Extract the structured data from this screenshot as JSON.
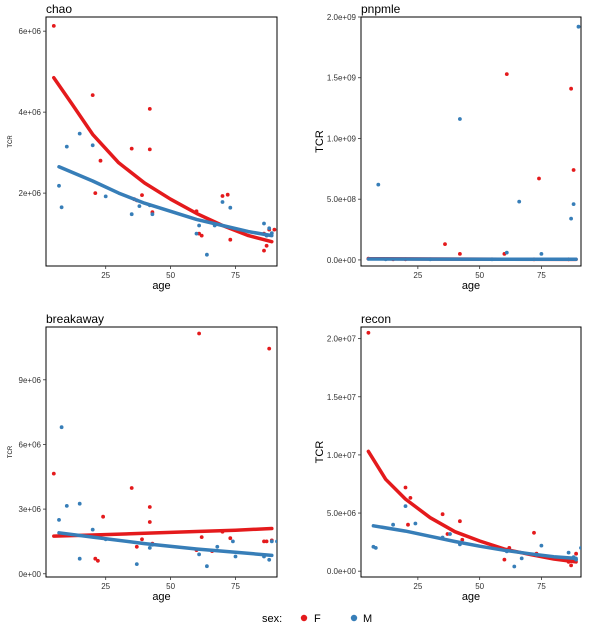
{
  "legend": {
    "title": "sex:",
    "entries": [
      {
        "label": "F",
        "color": "#E41A1C"
      },
      {
        "label": "M",
        "color": "#377EB8"
      }
    ]
  },
  "chart_data": [
    {
      "type": "scatter",
      "title": "chao",
      "xlabel": "age",
      "ylabel": "TCR",
      "xlim": [
        2,
        91
      ],
      "ylim": [
        200000,
        6350000
      ],
      "xticks": [
        25,
        50,
        75
      ],
      "xtick_labels": [
        "25",
        "50",
        "75"
      ],
      "yticks": [
        2000000,
        4000000,
        6000000
      ],
      "ytick_labels": [
        "2e+06",
        "4e+06",
        "6e+06"
      ],
      "series": [
        {
          "name": "F",
          "color": "#E41A1C",
          "points": [
            [
              5,
              6130000
            ],
            [
              20,
              4420000
            ],
            [
              23,
              2800000
            ],
            [
              21,
              2000000
            ],
            [
              35,
              3100000
            ],
            [
              36,
              1850000
            ],
            [
              37,
              1820000
            ],
            [
              39,
              1950000
            ],
            [
              42,
              4080000
            ],
            [
              42,
              3080000
            ],
            [
              43,
              1530000
            ],
            [
              60,
              1550000
            ],
            [
              61,
              1000000
            ],
            [
              62,
              950000
            ],
            [
              70,
              1930000
            ],
            [
              72,
              1960000
            ],
            [
              73,
              850000
            ],
            [
              86,
              580000
            ],
            [
              87,
              700000
            ],
            [
              88,
              1100000
            ],
            [
              90,
              1100000
            ],
            [
              86,
              1000000
            ]
          ],
          "trend": [
            [
              5,
              4850000
            ],
            [
              12,
              4200000
            ],
            [
              20,
              3450000
            ],
            [
              30,
              2750000
            ],
            [
              40,
              2250000
            ],
            [
              50,
              1850000
            ],
            [
              60,
              1500000
            ],
            [
              70,
              1200000
            ],
            [
              80,
              950000
            ],
            [
              89,
              800000
            ]
          ]
        },
        {
          "name": "M",
          "color": "#377EB8",
          "points": [
            [
              7,
              2180000
            ],
            [
              8,
              1650000
            ],
            [
              10,
              3150000
            ],
            [
              15,
              3470000
            ],
            [
              20,
              3180000
            ],
            [
              25,
              1920000
            ],
            [
              35,
              1480000
            ],
            [
              38,
              1680000
            ],
            [
              42,
              1700000
            ],
            [
              43,
              1480000
            ],
            [
              60,
              1000000
            ],
            [
              64,
              480000
            ],
            [
              67,
              1200000
            ],
            [
              70,
              1780000
            ],
            [
              73,
              1640000
            ],
            [
              86,
              1250000
            ],
            [
              88,
              1130000
            ],
            [
              87,
              950000
            ],
            [
              89,
              1010000
            ],
            [
              61,
              1200000
            ]
          ],
          "trend": [
            [
              7,
              2650000
            ],
            [
              20,
              2300000
            ],
            [
              30,
              2000000
            ],
            [
              40,
              1750000
            ],
            [
              50,
              1550000
            ],
            [
              60,
              1350000
            ],
            [
              70,
              1200000
            ],
            [
              80,
              1050000
            ],
            [
              89,
              950000
            ]
          ]
        }
      ]
    },
    {
      "type": "scatter",
      "title": "pnpmle",
      "xlabel": "age",
      "ylabel": "TCR",
      "xlim": [
        2,
        91
      ],
      "ylim": [
        -50000000,
        2000000000
      ],
      "xticks": [
        25,
        50,
        75
      ],
      "xtick_labels": [
        "25",
        "50",
        "75"
      ],
      "yticks": [
        0,
        500000000,
        1000000000,
        1500000000,
        2000000000
      ],
      "ytick_labels": [
        "0.0e+00",
        "5.0e+08",
        "1.0e+09",
        "1.5e+09",
        "2.0e+09"
      ],
      "series": [
        {
          "name": "F",
          "color": "#E41A1C",
          "points": [
            [
              5,
              10000000
            ],
            [
              15,
              5000000
            ],
            [
              20,
              5000000
            ],
            [
              36,
              130000000
            ],
            [
              42,
              50000000
            ],
            [
              60,
              50000000
            ],
            [
              61,
              1530000000
            ],
            [
              74,
              670000000
            ],
            [
              87,
              1410000000
            ],
            [
              88,
              740000000
            ],
            [
              72,
              5000000
            ],
            [
              86,
              5000000
            ]
          ],
          "trend": [
            [
              5,
              10000000
            ],
            [
              30,
              8000000
            ],
            [
              60,
              6000000
            ],
            [
              89,
              4000000
            ]
          ]
        },
        {
          "name": "M",
          "color": "#377EB8",
          "points": [
            [
              9,
              620000000
            ],
            [
              12,
              5000000
            ],
            [
              42,
              1160000000
            ],
            [
              61,
              60000000
            ],
            [
              66,
              480000000
            ],
            [
              75,
              50000000
            ],
            [
              88,
              460000000
            ],
            [
              87,
              340000000
            ],
            [
              90,
              1920000000
            ],
            [
              30,
              5000000
            ],
            [
              55,
              5000000
            ]
          ],
          "trend": [
            [
              5,
              8000000
            ],
            [
              30,
              7000000
            ],
            [
              60,
              6000000
            ],
            [
              89,
              5000000
            ]
          ]
        }
      ]
    },
    {
      "type": "scatter",
      "title": "breakaway",
      "xlabel": "age",
      "ylabel": "TCR",
      "xlim": [
        2,
        91
      ],
      "ylim": [
        -150000,
        11450000
      ],
      "xticks": [
        25,
        50,
        75
      ],
      "xtick_labels": [
        "25",
        "50",
        "75"
      ],
      "yticks": [
        0,
        3000000,
        6000000,
        9000000
      ],
      "ytick_labels": [
        "0e+00",
        "3e+06",
        "6e+06",
        "9e+06"
      ],
      "series": [
        {
          "name": "F",
          "color": "#E41A1C",
          "points": [
            [
              5,
              4650000
            ],
            [
              21,
              700000
            ],
            [
              22,
              600000
            ],
            [
              24,
              2650000
            ],
            [
              35,
              3980000
            ],
            [
              37,
              1250000
            ],
            [
              39,
              1600000
            ],
            [
              42,
              3100000
            ],
            [
              42,
              2400000
            ],
            [
              43,
              1400000
            ],
            [
              61,
              11150000
            ],
            [
              62,
              1700000
            ],
            [
              66,
              1050000
            ],
            [
              70,
              1950000
            ],
            [
              73,
              1650000
            ],
            [
              86,
              1500000
            ],
            [
              88,
              10450000
            ],
            [
              87,
              1500000
            ],
            [
              89,
              1550000
            ],
            [
              60,
              1100000
            ]
          ],
          "trend": [
            [
              5,
              1750000
            ],
            [
              20,
              1800000
            ],
            [
              40,
              1880000
            ],
            [
              60,
              1960000
            ],
            [
              75,
              2020000
            ],
            [
              89,
              2100000
            ]
          ]
        },
        {
          "name": "M",
          "color": "#377EB8",
          "points": [
            [
              7,
              2500000
            ],
            [
              8,
              6800000
            ],
            [
              10,
              3150000
            ],
            [
              15,
              3250000
            ],
            [
              15,
              700000
            ],
            [
              20,
              2050000
            ],
            [
              25,
              1600000
            ],
            [
              37,
              450000
            ],
            [
              43,
              1350000
            ],
            [
              42,
              1200000
            ],
            [
              61,
              900000
            ],
            [
              64,
              350000
            ],
            [
              68,
              1250000
            ],
            [
              74,
              1500000
            ],
            [
              75,
              800000
            ],
            [
              86,
              800000
            ],
            [
              88,
              650000
            ],
            [
              89,
              1500000
            ],
            [
              91,
              1500000
            ]
          ],
          "trend": [
            [
              7,
              1900000
            ],
            [
              20,
              1700000
            ],
            [
              40,
              1400000
            ],
            [
              60,
              1150000
            ],
            [
              75,
              1000000
            ],
            [
              89,
              850000
            ]
          ]
        }
      ]
    },
    {
      "type": "scatter",
      "title": "recon",
      "xlabel": "age",
      "ylabel": "TCR",
      "xlim": [
        2,
        91
      ],
      "ylim": [
        -500000,
        21000000
      ],
      "xticks": [
        25,
        50,
        75
      ],
      "xtick_labels": [
        "25",
        "50",
        "75"
      ],
      "yticks": [
        0,
        5000000,
        10000000,
        15000000,
        20000000
      ],
      "ytick_labels": [
        "0.0e+00",
        "5.0e+06",
        "1.0e+07",
        "1.5e+07",
        "2.0e+07"
      ],
      "series": [
        {
          "name": "F",
          "color": "#E41A1C",
          "points": [
            [
              5,
              20500000
            ],
            [
              20,
              7200000
            ],
            [
              21,
              4000000
            ],
            [
              22,
              6300000
            ],
            [
              35,
              4900000
            ],
            [
              37,
              3200000
            ],
            [
              42,
              4300000
            ],
            [
              43,
              2700000
            ],
            [
              60,
              1000000
            ],
            [
              61,
              1800000
            ],
            [
              62,
              2000000
            ],
            [
              72,
              3300000
            ],
            [
              73,
              1500000
            ],
            [
              86,
              800000
            ],
            [
              88,
              1000000
            ],
            [
              87,
              500000
            ],
            [
              89,
              1500000
            ]
          ],
          "trend": [
            [
              5,
              10300000
            ],
            [
              12,
              7900000
            ],
            [
              20,
              6200000
            ],
            [
              30,
              4600000
            ],
            [
              40,
              3400000
            ],
            [
              50,
              2600000
            ],
            [
              60,
              1900000
            ],
            [
              70,
              1450000
            ],
            [
              80,
              1050000
            ],
            [
              89,
              800000
            ]
          ]
        },
        {
          "name": "M",
          "color": "#377EB8",
          "points": [
            [
              7,
              2100000
            ],
            [
              8,
              2000000
            ],
            [
              15,
              4000000
            ],
            [
              20,
              5600000
            ],
            [
              24,
              4100000
            ],
            [
              35,
              2900000
            ],
            [
              38,
              3200000
            ],
            [
              42,
              2300000
            ],
            [
              61,
              1700000
            ],
            [
              64,
              400000
            ],
            [
              67,
              1100000
            ],
            [
              73,
              1400000
            ],
            [
              75,
              2200000
            ],
            [
              86,
              1600000
            ],
            [
              88,
              1200000
            ],
            [
              89,
              1000000
            ],
            [
              91,
              2000000
            ]
          ],
          "trend": [
            [
              7,
              3900000
            ],
            [
              20,
              3450000
            ],
            [
              30,
              3000000
            ],
            [
              40,
              2550000
            ],
            [
              50,
              2150000
            ],
            [
              60,
              1800000
            ],
            [
              70,
              1500000
            ],
            [
              80,
              1250000
            ],
            [
              89,
              1100000
            ]
          ]
        }
      ]
    }
  ]
}
